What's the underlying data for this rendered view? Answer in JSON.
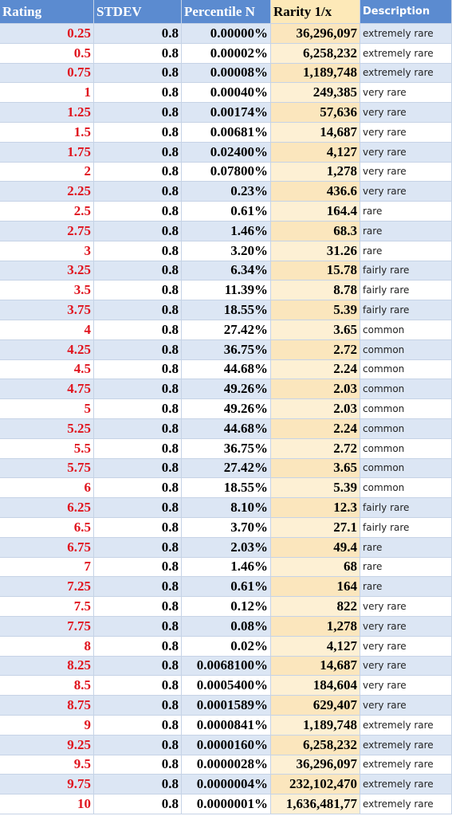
{
  "table": {
    "headers": [
      "Rating",
      "STDEV",
      "Percentile N",
      "Rarity 1/x",
      "Description"
    ],
    "rows": [
      [
        "0.25",
        "0.8",
        "0.00000%",
        "36,296,097",
        "extremely rare"
      ],
      [
        "0.5",
        "0.8",
        "0.00002%",
        "6,258,232",
        "extremely rare"
      ],
      [
        "0.75",
        "0.8",
        "0.00008%",
        "1,189,748",
        "extremely rare"
      ],
      [
        "1",
        "0.8",
        "0.00040%",
        "249,385",
        "very rare"
      ],
      [
        "1.25",
        "0.8",
        "0.00174%",
        "57,636",
        "very rare"
      ],
      [
        "1.5",
        "0.8",
        "0.00681%",
        "14,687",
        "very rare"
      ],
      [
        "1.75",
        "0.8",
        "0.02400%",
        "4,127",
        "very rare"
      ],
      [
        "2",
        "0.8",
        "0.07800%",
        "1,278",
        "very rare"
      ],
      [
        "2.25",
        "0.8",
        "0.23%",
        "436.6",
        "very rare"
      ],
      [
        "2.5",
        "0.8",
        "0.61%",
        "164.4",
        "rare"
      ],
      [
        "2.75",
        "0.8",
        "1.46%",
        "68.3",
        "rare"
      ],
      [
        "3",
        "0.8",
        "3.20%",
        "31.26",
        "rare"
      ],
      [
        "3.25",
        "0.8",
        "6.34%",
        "15.78",
        "fairly rare"
      ],
      [
        "3.5",
        "0.8",
        "11.39%",
        "8.78",
        "fairly rare"
      ],
      [
        "3.75",
        "0.8",
        "18.55%",
        "5.39",
        "fairly rare"
      ],
      [
        "4",
        "0.8",
        "27.42%",
        "3.65",
        "common"
      ],
      [
        "4.25",
        "0.8",
        "36.75%",
        "2.72",
        "common"
      ],
      [
        "4.5",
        "0.8",
        "44.68%",
        "2.24",
        "common"
      ],
      [
        "4.75",
        "0.8",
        "49.26%",
        "2.03",
        "common"
      ],
      [
        "5",
        "0.8",
        "49.26%",
        "2.03",
        "common"
      ],
      [
        "5.25",
        "0.8",
        "44.68%",
        "2.24",
        "common"
      ],
      [
        "5.5",
        "0.8",
        "36.75%",
        "2.72",
        "common"
      ],
      [
        "5.75",
        "0.8",
        "27.42%",
        "3.65",
        "common"
      ],
      [
        "6",
        "0.8",
        "18.55%",
        "5.39",
        "common"
      ],
      [
        "6.25",
        "0.8",
        "8.10%",
        "12.3",
        "fairly rare"
      ],
      [
        "6.5",
        "0.8",
        "3.70%",
        "27.1",
        "fairly rare"
      ],
      [
        "6.75",
        "0.8",
        "2.03%",
        "49.4",
        "rare"
      ],
      [
        "7",
        "0.8",
        "1.46%",
        "68",
        "rare"
      ],
      [
        "7.25",
        "0.8",
        "0.61%",
        "164",
        "rare"
      ],
      [
        "7.5",
        "0.8",
        "0.12%",
        "822",
        "very rare"
      ],
      [
        "7.75",
        "0.8",
        "0.08%",
        "1,278",
        "very rare"
      ],
      [
        "8",
        "0.8",
        "0.02%",
        "4,127",
        "very rare"
      ],
      [
        "8.25",
        "0.8",
        "0.0068100%",
        "14,687",
        "very rare"
      ],
      [
        "8.5",
        "0.8",
        "0.0005400%",
        "184,604",
        "very rare"
      ],
      [
        "8.75",
        "0.8",
        "0.0001589%",
        "629,407",
        "very rare"
      ],
      [
        "9",
        "0.8",
        "0.0000841%",
        "1,189,748",
        "extremely rare"
      ],
      [
        "9.25",
        "0.8",
        "0.0000160%",
        "6,258,232",
        "extremely rare"
      ],
      [
        "9.5",
        "0.8",
        "0.0000028%",
        "36,296,097",
        "extremely rare"
      ],
      [
        "9.75",
        "0.8",
        "0.0000004%",
        "232,102,470",
        "extremely rare"
      ],
      [
        "10",
        "0.8",
        "0.0000001%",
        "1,636,481,77",
        "extremely rare"
      ]
    ]
  }
}
